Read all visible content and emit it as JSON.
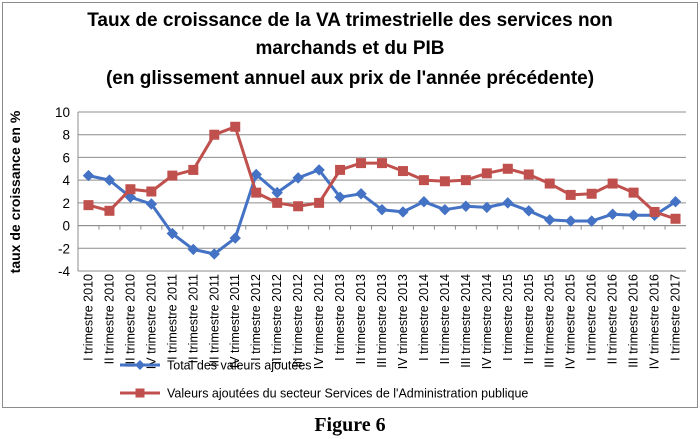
{
  "chart_data": {
    "type": "line",
    "title_lines": [
      "Taux de croissance de la VA trimestrielle des services non",
      "marchands et du PIB",
      "(en glissement annuel aux prix de l'année précédente)"
    ],
    "ylabel": "taux de croissance en %",
    "ylim": [
      -4,
      10
    ],
    "yticks": [
      -4,
      -2,
      0,
      2,
      4,
      6,
      8,
      10
    ],
    "grid": true,
    "legend_position": "bottom",
    "categories": [
      "I trimestre 2010",
      "II trimestre 2010",
      "III trimestre 2010",
      "IV trimestre 2010",
      "I trimestre 2011",
      "II trimestre 2011",
      "III trimestre 2011",
      "IV trimestre 2011",
      "I trimestre 2012",
      "II trimestre 2012",
      "III trimestre 2012",
      "IV trimestre 2012",
      "I trimestre 2013",
      "II trimestre 2013",
      "III trimestre 2013",
      "IV trimestre 2013",
      "I trimestre 2014",
      "II trimestre 2014",
      "III trimestre 2014",
      "IV trimestre 2014",
      "I trimestre 2015",
      "II trimestre 2015",
      "III trimestre 2015",
      "IV trimestre 2015",
      "I trimestre 2016",
      "II trimestre 2016",
      "III trimestre 2016",
      "IV trimestre 2016",
      "I trimestre 2017"
    ],
    "series": [
      {
        "name": "Total des valeurs ajoutées",
        "color": "#4472c4",
        "marker": "diamond",
        "values": [
          4.4,
          4.0,
          2.5,
          1.9,
          -0.7,
          -2.1,
          -2.5,
          -1.1,
          4.5,
          2.9,
          4.2,
          4.9,
          2.5,
          2.8,
          1.4,
          1.2,
          2.1,
          1.4,
          1.7,
          1.6,
          2.0,
          1.3,
          0.5,
          0.4,
          0.4,
          1.0,
          0.9,
          0.9,
          2.1
        ]
      },
      {
        "name": "Valeurs ajoutées du secteur Services de l'Administration publique",
        "color": "#c0504d",
        "marker": "square",
        "values": [
          1.8,
          1.3,
          3.2,
          3.0,
          4.4,
          4.9,
          8.0,
          8.7,
          2.9,
          2.0,
          1.7,
          2.0,
          4.9,
          5.5,
          5.5,
          4.8,
          4.0,
          3.9,
          4.0,
          4.6,
          5.0,
          4.5,
          3.7,
          2.7,
          2.8,
          3.7,
          2.9,
          1.2,
          0.6
        ]
      }
    ]
  },
  "caption": "Figure 6"
}
